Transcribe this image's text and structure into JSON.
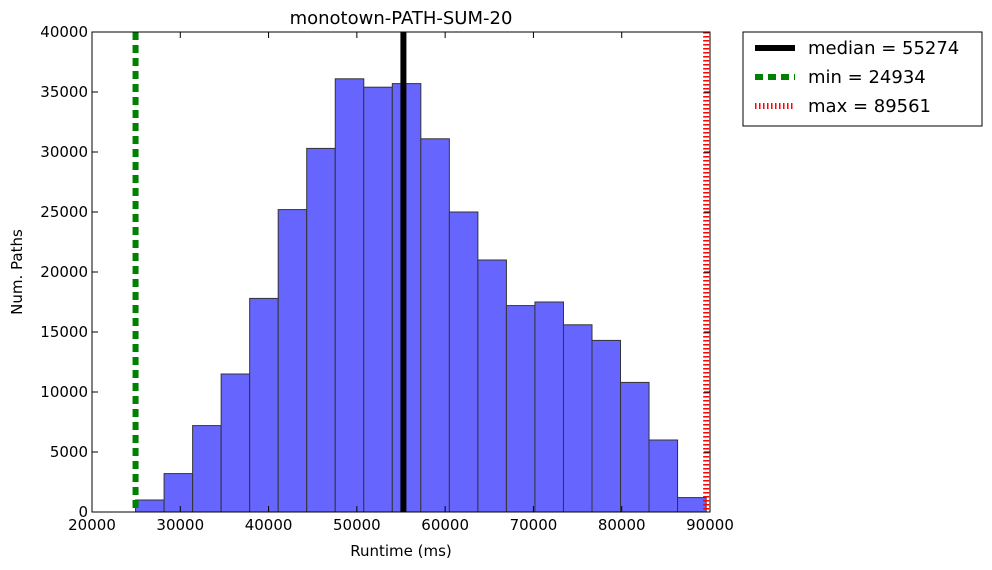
{
  "chart_data": {
    "type": "bar",
    "title": "monotown-PATH-SUM-20",
    "xlabel": "Runtime (ms)",
    "ylabel": "Num. Paths",
    "xlim": [
      20000,
      90000
    ],
    "ylim": [
      0,
      40000
    ],
    "x_ticks": [
      "20000",
      "30000",
      "40000",
      "50000",
      "60000",
      "70000",
      "80000",
      "90000"
    ],
    "y_ticks": [
      "0",
      "5000",
      "10000",
      "15000",
      "20000",
      "25000",
      "30000",
      "35000",
      "40000"
    ],
    "bar_color": "#6666ff",
    "bins": [
      {
        "x0": 24934,
        "x1": 28165,
        "count": 1000
      },
      {
        "x0": 28165,
        "x1": 31396,
        "count": 3200
      },
      {
        "x0": 31396,
        "x1": 34628,
        "count": 7200
      },
      {
        "x0": 34628,
        "x1": 37859,
        "count": 11500
      },
      {
        "x0": 37859,
        "x1": 41090,
        "count": 17800
      },
      {
        "x0": 41090,
        "x1": 44321,
        "count": 25200
      },
      {
        "x0": 44321,
        "x1": 47553,
        "count": 30300
      },
      {
        "x0": 47553,
        "x1": 50784,
        "count": 36100
      },
      {
        "x0": 50784,
        "x1": 54015,
        "count": 35400
      },
      {
        "x0": 54015,
        "x1": 57246,
        "count": 35700
      },
      {
        "x0": 57246,
        "x1": 60478,
        "count": 31100
      },
      {
        "x0": 60478,
        "x1": 63709,
        "count": 25000
      },
      {
        "x0": 63709,
        "x1": 66940,
        "count": 21000
      },
      {
        "x0": 66940,
        "x1": 70171,
        "count": 17200
      },
      {
        "x0": 70171,
        "x1": 73403,
        "count": 17500
      },
      {
        "x0": 73403,
        "x1": 76634,
        "count": 15600
      },
      {
        "x0": 76634,
        "x1": 79865,
        "count": 14300
      },
      {
        "x0": 79865,
        "x1": 83096,
        "count": 10800
      },
      {
        "x0": 83096,
        "x1": 86328,
        "count": 6000
      },
      {
        "x0": 86328,
        "x1": 89561,
        "count": 1200
      }
    ],
    "vlines": [
      {
        "name": "median = 55274",
        "value": 55274,
        "color": "#000000",
        "style": "solid"
      },
      {
        "name": "min = 24934",
        "value": 24934,
        "color": "#008000",
        "style": "dashed"
      },
      {
        "name": "max = 89561",
        "value": 89561,
        "color": "#ff0000",
        "style": "dotted"
      }
    ],
    "legend_position": "outside-top-right"
  }
}
